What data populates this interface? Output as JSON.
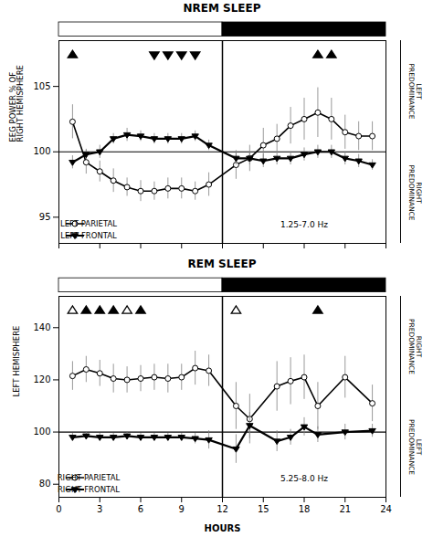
{
  "chart_data": [
    {
      "type": "line",
      "title": "NREM SLEEP",
      "ylabel": "EEG POWER % OF\nRIGHT HEMISPHERE",
      "xlim": [
        0,
        24
      ],
      "xticks": [
        0,
        3,
        6,
        9,
        12,
        15,
        18,
        21,
        24
      ],
      "tick_labels": "y",
      "ylim": [
        93,
        108.5
      ],
      "yticks": [
        95,
        100,
        105
      ],
      "ref_line_y": 100,
      "vline_x": 12,
      "legend": "lower left",
      "freq_label": "1.25-7.0 Hz",
      "right_label_top": "LEFT\nPREDOMINANCE",
      "right_label_bot": "RIGHT\nPREDOMINANCE",
      "series": [
        {
          "name": "LEFT PARIETAL",
          "color": "black",
          "marker": "open_circle",
          "x": [
            1,
            2,
            3,
            4,
            5,
            6,
            7,
            8,
            9,
            10,
            11,
            13,
            14,
            15,
            16,
            17,
            18,
            19,
            20,
            21,
            22,
            23
          ],
          "values": [
            102.3,
            99.2,
            98.5,
            97.8,
            97.3,
            97.0,
            97.0,
            97.2,
            97.2,
            97.0,
            97.5,
            99.0,
            99.5,
            100.5,
            101.0,
            102.0,
            102.5,
            103.0,
            102.5,
            101.5,
            101.2,
            101.2
          ],
          "errors": [
            1.3,
            0.9,
            0.8,
            0.9,
            0.7,
            0.8,
            0.7,
            0.8,
            0.8,
            0.7,
            0.9,
            1.1,
            1.0,
            1.3,
            1.1,
            1.4,
            1.6,
            1.9,
            1.6,
            1.3,
            1.1,
            1.1
          ]
        },
        {
          "name": "LEFT FRONTAL",
          "color": "black",
          "marker": "filled_triangle_down",
          "x": [
            1,
            2,
            3,
            4,
            5,
            6,
            7,
            8,
            9,
            10,
            11,
            13,
            14,
            15,
            16,
            17,
            18,
            19,
            20,
            21,
            22,
            23
          ],
          "values": [
            99.2,
            99.8,
            100.0,
            101.0,
            101.3,
            101.2,
            101.0,
            101.0,
            101.0,
            101.2,
            100.5,
            99.5,
            99.5,
            99.3,
            99.5,
            99.5,
            99.8,
            100.0,
            100.0,
            99.5,
            99.3,
            99.0
          ],
          "errors": [
            0.5,
            0.4,
            0.5,
            0.4,
            0.5,
            0.4,
            0.4,
            0.4,
            0.4,
            0.4,
            0.4,
            0.5,
            0.5,
            0.5,
            0.5,
            0.5,
            0.5,
            0.5,
            0.5,
            0.5,
            0.5,
            0.4
          ]
        }
      ],
      "sig_markers": [
        {
          "marker": "filled_triangle_up",
          "x": [
            1,
            19,
            20
          ]
        },
        {
          "marker": "filled_triangle_down",
          "x": [
            7,
            8,
            9,
            10
          ]
        }
      ]
    },
    {
      "type": "line",
      "title": "REM SLEEP",
      "ylabel": "LEFT HEMISPHERE",
      "xlabel": "HOURS",
      "xlim": [
        0,
        24
      ],
      "xticks": [
        0,
        3,
        6,
        9,
        12,
        15,
        18,
        21,
        24
      ],
      "ylim": [
        75,
        152
      ],
      "yticks": [
        80,
        100,
        120,
        140
      ],
      "ref_line_y": 100,
      "vline_x": 12,
      "legend": "lower left",
      "freq_label": "5.25-8.0 Hz",
      "right_label_top": "RIGHT\nPREDOMINANCE",
      "right_label_bot": "LEFT\nPREDOMINANCE",
      "series": [
        {
          "name": "RIGHT PARIETAL",
          "color": "black",
          "marker": "open_circle",
          "x": [
            1,
            2,
            3,
            4,
            5,
            6,
            7,
            8,
            9,
            10,
            11,
            13,
            14,
            16,
            17,
            18,
            19,
            21,
            23
          ],
          "values": [
            121.5,
            124.0,
            122.5,
            120.5,
            120.0,
            120.5,
            121.0,
            120.5,
            121.0,
            124.5,
            123.5,
            110.0,
            105.0,
            117.5,
            119.5,
            121.0,
            110.0,
            121.0,
            111.0
          ],
          "errors": [
            5.5,
            5.0,
            5.0,
            5.5,
            5.0,
            5.0,
            5.0,
            5.5,
            5.0,
            6.5,
            6.0,
            9.0,
            9.5,
            9.5,
            9.0,
            8.5,
            9.0,
            8.0,
            7.0
          ]
        },
        {
          "name": "RIGHT FRONTAL",
          "color": "black",
          "marker": "filled_triangle_down",
          "x": [
            1,
            2,
            3,
            4,
            5,
            6,
            7,
            8,
            9,
            10,
            11,
            13,
            14,
            16,
            17,
            18,
            19,
            21,
            23
          ],
          "values": [
            98.0,
            98.5,
            98.0,
            98.0,
            98.5,
            98.0,
            98.0,
            98.0,
            98.0,
            97.5,
            97.0,
            93.5,
            102.5,
            96.5,
            98.0,
            102.0,
            99.0,
            100.0,
            100.5
          ],
          "errors": [
            1.5,
            1.5,
            1.5,
            1.5,
            1.5,
            1.5,
            1.5,
            1.5,
            1.5,
            2.0,
            3.5,
            5.5,
            5.0,
            4.0,
            3.0,
            3.5,
            3.0,
            3.0,
            2.5
          ]
        }
      ],
      "sig_markers": [
        {
          "marker": "open_triangle_up",
          "x": [
            1,
            5,
            13
          ]
        },
        {
          "marker": "filled_triangle_up",
          "x": [
            2,
            3,
            4,
            6,
            19
          ]
        }
      ]
    }
  ]
}
